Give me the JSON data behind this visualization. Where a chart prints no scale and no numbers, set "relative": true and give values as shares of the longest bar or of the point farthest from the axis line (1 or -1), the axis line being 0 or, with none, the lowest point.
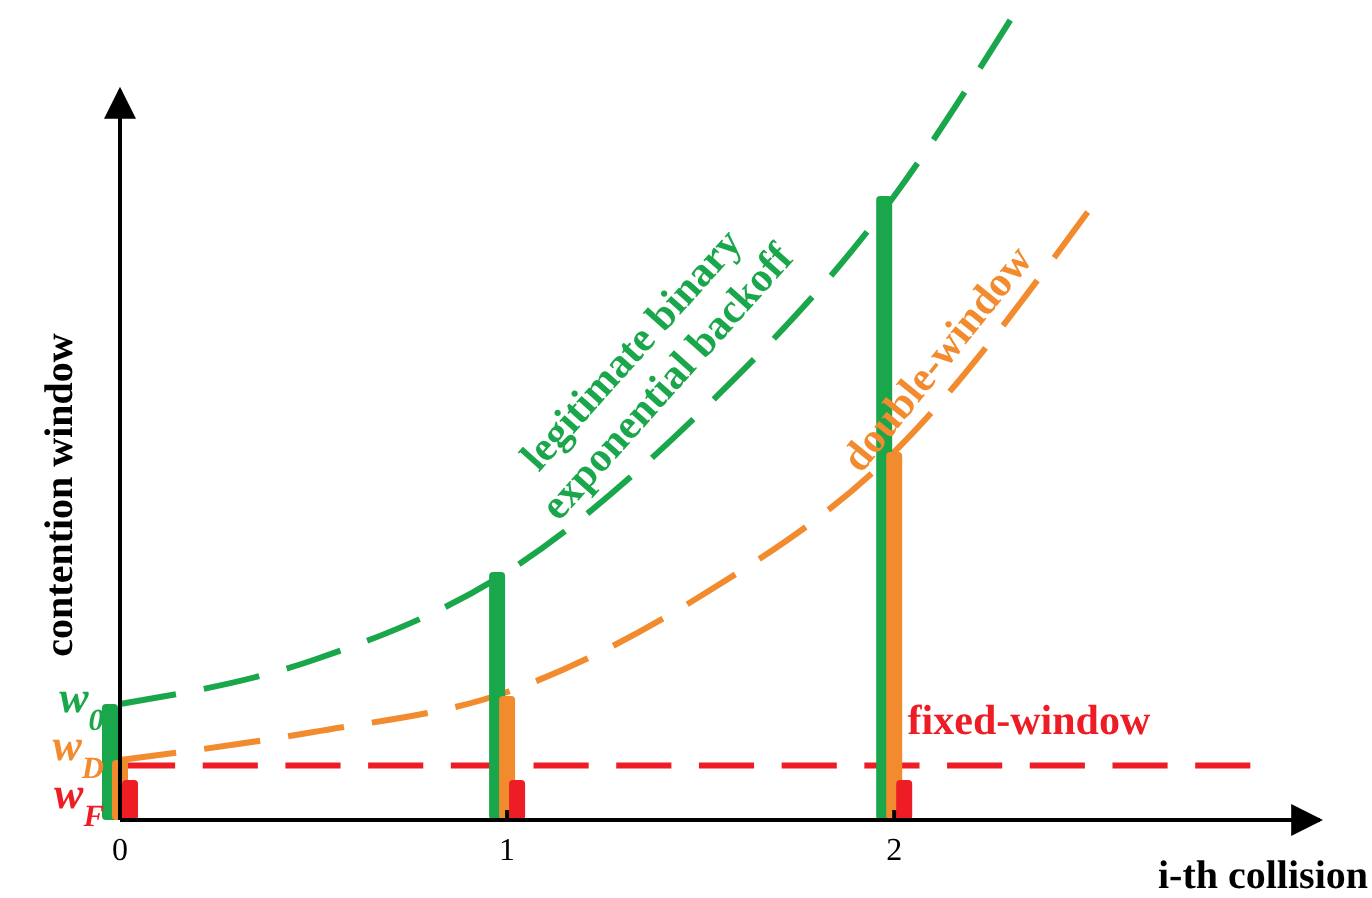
{
  "chart_data": {
    "type": "line",
    "relative": true,
    "xlabel": "i-th collision",
    "ylabel": "contention window",
    "xlim": [
      0,
      3.1
    ],
    "xticks": [
      0,
      1,
      2
    ],
    "legend": false,
    "grid": false,
    "marker": "none",
    "series": [
      {
        "name": "legitimate binary exponential backoff",
        "color": "#1aa64a",
        "line_style": "dashed",
        "x": [
          0,
          0.5,
          1,
          1.5,
          2,
          2.3
        ],
        "values": [
          0.145,
          0.2,
          0.31,
          0.51,
          0.78,
          1
        ]
      },
      {
        "name": "double-window",
        "color": "#f28a2e",
        "line_style": "dashed",
        "x": [
          0,
          0.5,
          1,
          1.5,
          2,
          2.5
        ],
        "values": [
          0.075,
          0.11,
          0.16,
          0.28,
          0.46,
          0.76
        ]
      },
      {
        "name": "fixed-window",
        "color": "#ee1c24",
        "line_style": "dashed",
        "x": [
          0,
          2.92
        ],
        "values": [
          0.068,
          0.068
        ]
      },
      {
        "type": "bar",
        "color": "#1aa64a",
        "x": [
          0,
          1,
          2
        ],
        "values": [
          0.145,
          0.31,
          0.78
        ]
      },
      {
        "type": "bar",
        "color": "#f28a2e",
        "x": [
          0,
          1,
          2
        ],
        "values": [
          0.075,
          0.155,
          0.46
        ]
      },
      {
        "type": "bar",
        "color": "#ee1c24",
        "x": [
          0,
          1,
          2
        ],
        "values": [
          0.05,
          0.05,
          0.05
        ]
      }
    ],
    "annotations": [
      "w$_{0}$",
      "w$_{D}$",
      "w$_{F}$"
    ]
  }
}
